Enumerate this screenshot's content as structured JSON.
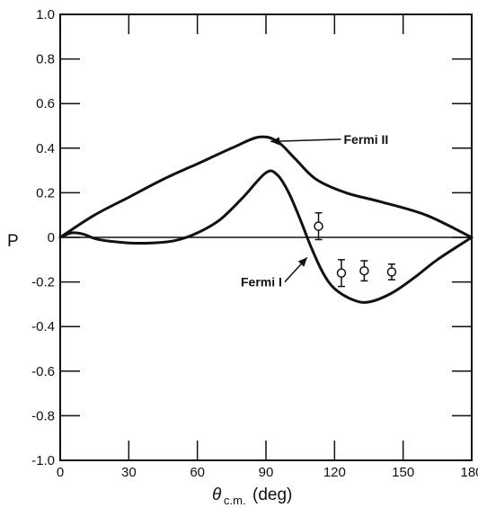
{
  "chart_data": {
    "type": "line",
    "title": "",
    "xlabel": "θc.m.(deg)",
    "ylabel": "P",
    "xlim": [
      0,
      180
    ],
    "ylim": [
      -1.0,
      1.0
    ],
    "x_ticks": [
      "0",
      "30",
      "60",
      "90",
      "120",
      "150",
      "180"
    ],
    "x_tick_values": [
      0,
      30,
      60,
      90,
      120,
      150,
      180
    ],
    "y_ticks": [
      "1.0",
      "0.8",
      "0.6",
      "0.4",
      "0.2",
      "0",
      "-0.2",
      "-0.4",
      "-0.6",
      "-0.8",
      "-1.0"
    ],
    "y_tick_values": [
      1.0,
      0.8,
      0.6,
      0.4,
      0.2,
      0,
      -0.2,
      -0.4,
      -0.6,
      -0.8,
      -1.0
    ],
    "grid": false,
    "series": [
      {
        "name": "Fermi II",
        "x": [
          0,
          15,
          30,
          45,
          60,
          75,
          87,
          95,
          103,
          112,
          125,
          140,
          160,
          180
        ],
        "y": [
          0,
          0.1,
          0.18,
          0.26,
          0.33,
          0.4,
          0.45,
          0.43,
          0.35,
          0.26,
          0.2,
          0.16,
          0.1,
          0
        ]
      },
      {
        "name": "Fermi I",
        "x": [
          0,
          5,
          10,
          15,
          20,
          30,
          40,
          50,
          60,
          70,
          80,
          90,
          95,
          100,
          105,
          110,
          115,
          120,
          128,
          135,
          145,
          155,
          165,
          180
        ],
        "y": [
          0,
          0.02,
          0.015,
          -0.005,
          -0.015,
          -0.025,
          -0.025,
          -0.015,
          0.02,
          0.08,
          0.18,
          0.29,
          0.28,
          0.2,
          0.08,
          -0.05,
          -0.16,
          -0.23,
          -0.28,
          -0.29,
          -0.25,
          -0.18,
          -0.1,
          0
        ]
      }
    ],
    "measurements": {
      "x": [
        113,
        123,
        133,
        145
      ],
      "y": [
        0.05,
        -0.16,
        -0.15,
        -0.155
      ],
      "yerr": [
        0.06,
        0.06,
        0.045,
        0.035
      ]
    },
    "annotations": [
      {
        "text": "Fermi II",
        "x_label": 124,
        "y_label": 0.44,
        "x_arrow": 92,
        "y_arrow": 0.43
      },
      {
        "text": "Fermi I",
        "x_label": 79,
        "y_label": -0.2,
        "x_arrow": 108,
        "y_arrow": -0.09
      }
    ]
  }
}
